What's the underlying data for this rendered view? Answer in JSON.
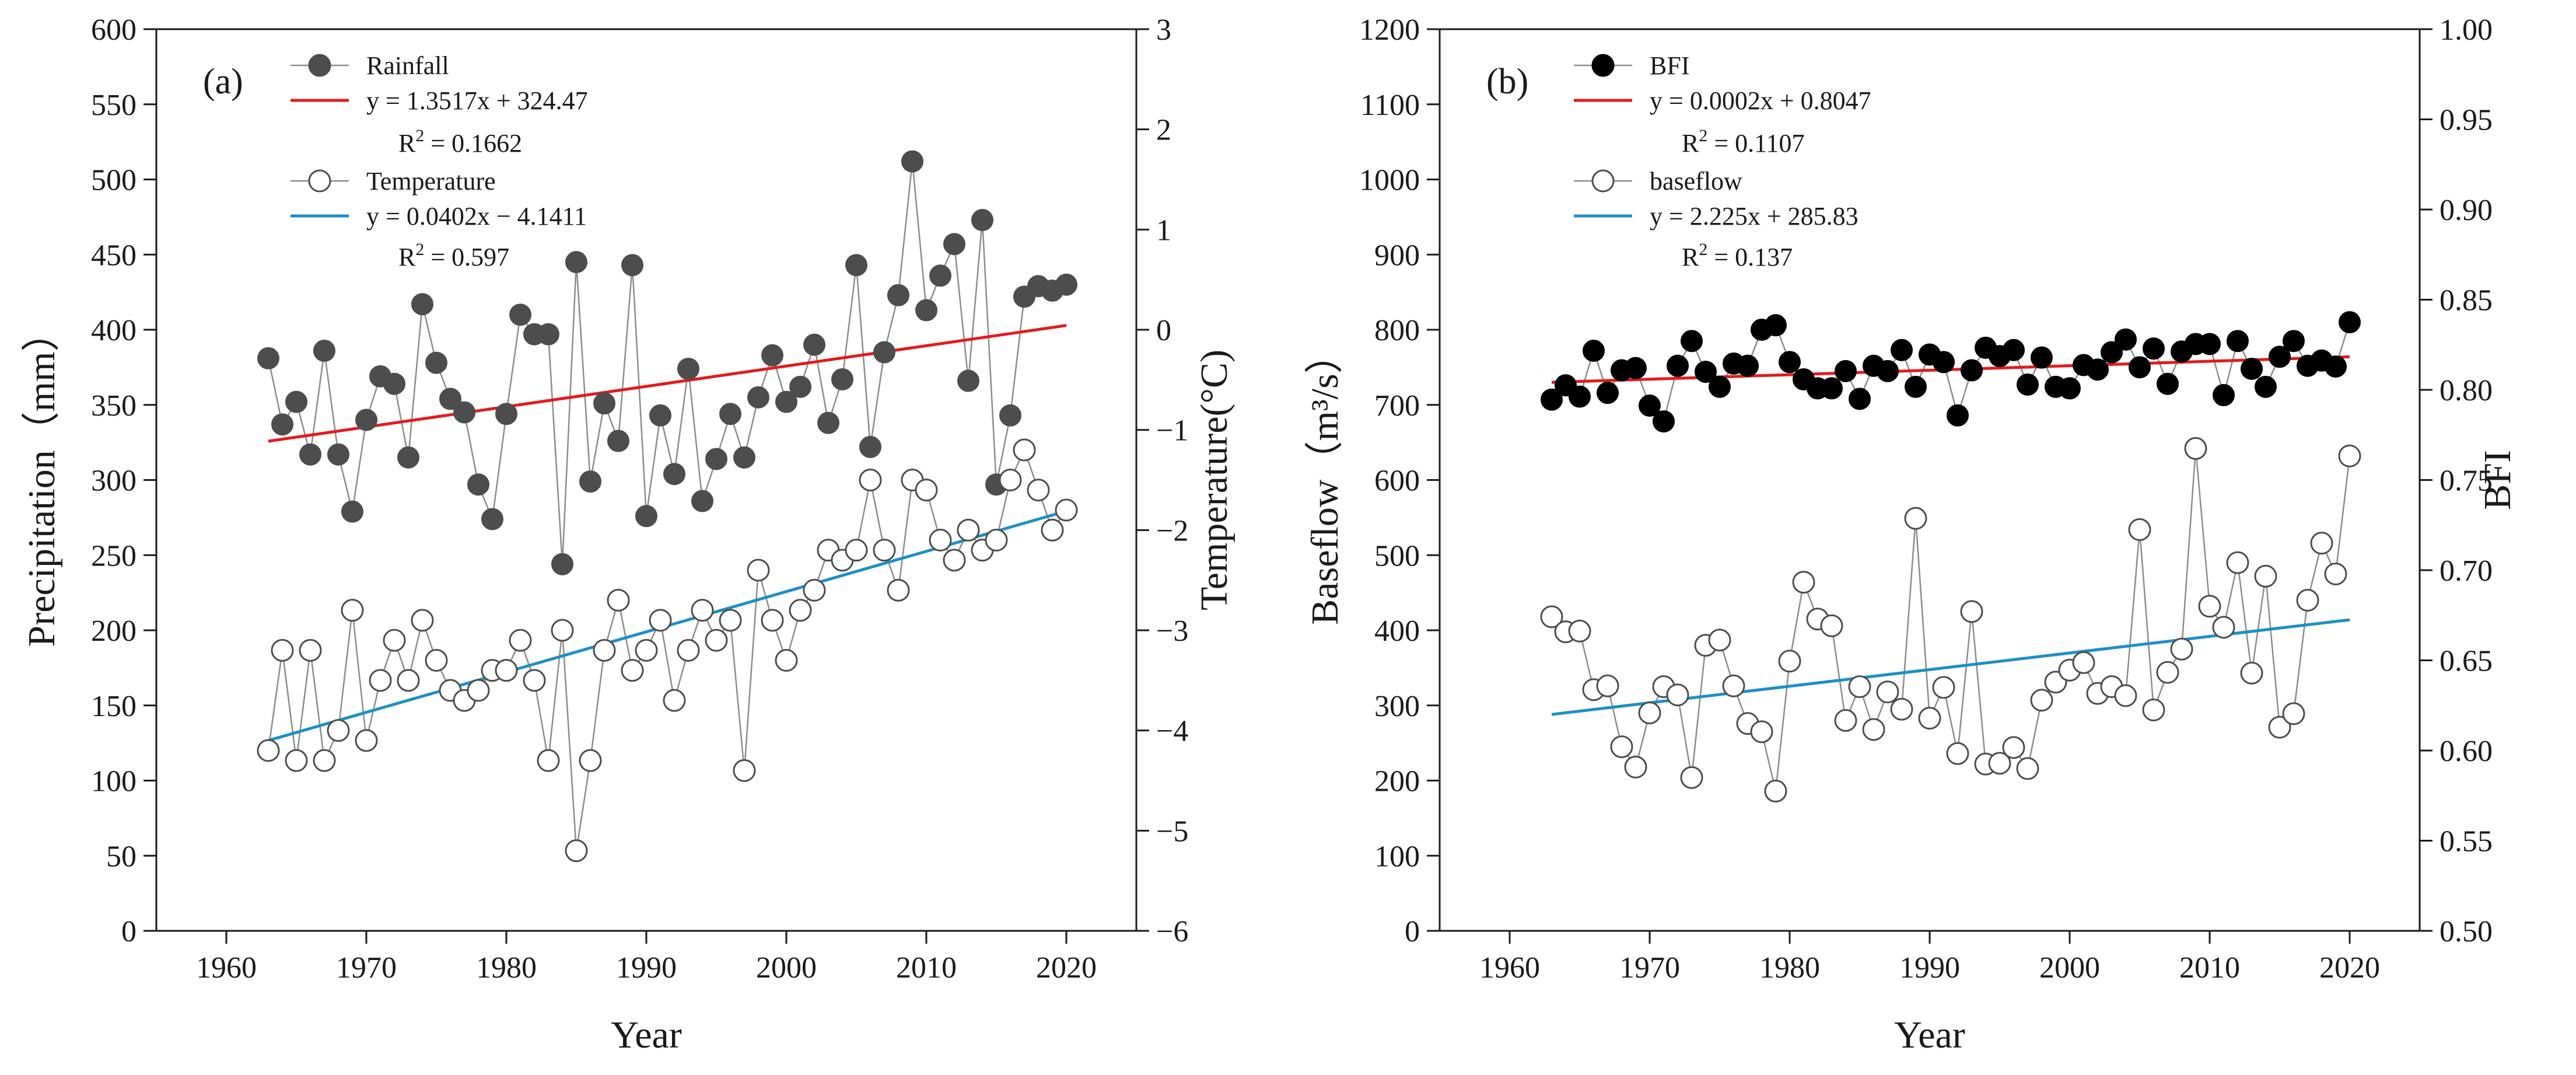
{
  "figure": "Two-panel chart: (a) precipitation and temperature; (b) baseflow and BFI",
  "chart_data": [
    {
      "type": "scatter",
      "panel_label": "(a)",
      "xlabel": "Year",
      "ylabel_left": "Precipitation（mm）",
      "ylabel_right": "Temperature(°C)",
      "xlim": [
        1955,
        2025
      ],
      "x_ticks": [
        1960,
        1970,
        1980,
        1990,
        2000,
        2010,
        2020
      ],
      "ylim_left": [
        0,
        600
      ],
      "y_ticks_left": [
        0,
        50,
        100,
        150,
        200,
        250,
        300,
        350,
        400,
        450,
        500,
        550,
        600
      ],
      "ylim_right": [
        -6,
        3
      ],
      "y_ticks_right": [
        -6,
        -5,
        -4,
        -3,
        -2,
        -1,
        0,
        1,
        2,
        3
      ],
      "series": [
        {
          "name": "Rainfall",
          "axis": "left",
          "marker": "filled",
          "color": "#4d4d4d",
          "x": [
            1963,
            1964,
            1965,
            1966,
            1967,
            1968,
            1969,
            1970,
            1971,
            1972,
            1973,
            1974,
            1975,
            1976,
            1977,
            1978,
            1979,
            1980,
            1981,
            1982,
            1983,
            1984,
            1985,
            1986,
            1987,
            1988,
            1989,
            1990,
            1991,
            1992,
            1993,
            1994,
            1995,
            1996,
            1997,
            1998,
            1999,
            2000,
            2001,
            2002,
            2003,
            2004,
            2005,
            2006,
            2007,
            2008,
            2009,
            2010,
            2011,
            2012,
            2013,
            2014,
            2015,
            2016,
            2017,
            2018,
            2019,
            2020
          ],
          "values": [
            381,
            337,
            352,
            317,
            386,
            317,
            279,
            340,
            369,
            364,
            315,
            417,
            378,
            354,
            345,
            297,
            274,
            344,
            410,
            397,
            397,
            244,
            445,
            299,
            351,
            326,
            443,
            276,
            343,
            304,
            374,
            286,
            314,
            344,
            315,
            355,
            383,
            352,
            362,
            390,
            338,
            367,
            443,
            322,
            385,
            423,
            512,
            413,
            436,
            457,
            366,
            473,
            297,
            343,
            422,
            429,
            426,
            430
          ]
        },
        {
          "name": "Temperature",
          "axis": "right",
          "marker": "open",
          "color": "#7f7f7f",
          "x": [
            1963,
            1964,
            1965,
            1966,
            1967,
            1968,
            1969,
            1970,
            1971,
            1972,
            1973,
            1974,
            1975,
            1976,
            1977,
            1978,
            1979,
            1980,
            1981,
            1982,
            1983,
            1984,
            1985,
            1986,
            1987,
            1988,
            1989,
            1990,
            1991,
            1992,
            1993,
            1994,
            1995,
            1996,
            1997,
            1998,
            1999,
            2000,
            2001,
            2002,
            2003,
            2004,
            2005,
            2006,
            2007,
            2008,
            2009,
            2010,
            2011,
            2012,
            2013,
            2014,
            2015,
            2016,
            2017,
            2018,
            2019,
            2020
          ],
          "values": [
            -4.2,
            -3.2,
            -4.3,
            -3.2,
            -4.3,
            -4.0,
            -2.8,
            -4.1,
            -3.5,
            -3.1,
            -3.5,
            -2.9,
            -3.3,
            -3.6,
            -3.7,
            -3.6,
            -3.4,
            -3.4,
            -3.1,
            -3.5,
            -4.3,
            -3.0,
            -5.2,
            -4.3,
            -3.2,
            -2.7,
            -3.4,
            -3.2,
            -2.9,
            -3.7,
            -3.2,
            -2.8,
            -3.1,
            -2.9,
            -4.4,
            -2.4,
            -2.9,
            -3.3,
            -2.8,
            -2.6,
            -2.2,
            -2.3,
            -2.2,
            -1.5,
            -2.2,
            -2.6,
            -1.5,
            -1.6,
            -2.1,
            -2.3,
            -2.0,
            -2.2,
            -2.1,
            -1.5,
            -1.2,
            -1.6,
            -2.0,
            -1.8
          ]
        }
      ],
      "fits": [
        {
          "name": "Rainfall fit",
          "axis": "left",
          "color": "#e41a1c",
          "equation": "y = 1.3517x + 324.47",
          "r2": "0.1662",
          "x": [
            1963,
            2020
          ],
          "values": [
            325.82,
            402.87
          ]
        },
        {
          "name": "Temperature fit",
          "axis": "right",
          "color": "#1b8fc9",
          "equation": "y = 0.0402x − 4.1411",
          "r2": "0.597",
          "x": [
            1963,
            2020
          ],
          "values": [
            -4.1,
            -1.81
          ]
        }
      ],
      "legend": {
        "location": "top-left",
        "entries": [
          {
            "label": "Rainfall",
            "type": "marker-filled"
          },
          {
            "label": "y = 1.3517x + 324.47",
            "type": "line",
            "color": "#e41a1c"
          },
          {
            "label": "R",
            "sup": "2",
            "suffix": " = 0.1662",
            "type": "text"
          },
          {
            "label": "Temperature",
            "type": "marker-open"
          },
          {
            "label": "y = 0.0402x − 4.1411",
            "type": "line",
            "color": "#1b8fc9"
          },
          {
            "label": "R",
            "sup": "2",
            "suffix": " = 0.597",
            "type": "text"
          }
        ]
      }
    },
    {
      "type": "scatter",
      "panel_label": "(b)",
      "xlabel": "Year",
      "ylabel_left": "Baseflow（m³/s）",
      "ylabel_right": "BFI",
      "xlim": [
        1955,
        2025
      ],
      "x_ticks": [
        1960,
        1970,
        1980,
        1990,
        2000,
        2010,
        2020
      ],
      "ylim_left": [
        0,
        1200
      ],
      "y_ticks_left": [
        0,
        100,
        200,
        300,
        400,
        500,
        600,
        700,
        800,
        900,
        1000,
        1100,
        1200
      ],
      "ylim_right": [
        0.5,
        1.0
      ],
      "y_ticks_right": [
        "0.50",
        "0.55",
        "0.60",
        "0.65",
        "0.70",
        "0.75",
        "0.80",
        "0.85",
        "0.90",
        "0.95",
        "1.00"
      ],
      "series": [
        {
          "name": "BFI",
          "axis": "left",
          "marker": "filled",
          "color": "#000000",
          "x": [
            1963,
            1964,
            1965,
            1966,
            1967,
            1968,
            1969,
            1970,
            1971,
            1972,
            1973,
            1974,
            1975,
            1976,
            1977,
            1978,
            1979,
            1980,
            1981,
            1982,
            1983,
            1984,
            1985,
            1986,
            1987,
            1988,
            1989,
            1990,
            1991,
            1992,
            1993,
            1994,
            1995,
            1996,
            1997,
            1998,
            1999,
            2000,
            2001,
            2002,
            2003,
            2004,
            2005,
            2006,
            2007,
            2008,
            2009,
            2010,
            2011,
            2012,
            2013,
            2014,
            2015,
            2016,
            2017,
            2018,
            2019,
            2020
          ],
          "values": [
            707,
            726,
            711,
            772,
            716,
            746,
            749,
            699,
            678,
            752,
            785,
            744,
            724,
            755,
            752,
            800,
            806,
            757,
            734,
            722,
            722,
            745,
            708,
            752,
            745,
            773,
            724,
            767,
            757,
            686,
            746,
            776,
            765,
            773,
            727,
            763,
            724,
            722,
            753,
            747,
            770,
            787,
            750,
            775,
            728,
            771,
            781,
            781,
            713,
            785,
            748,
            724,
            764,
            785,
            752,
            759,
            751,
            810
          ]
        },
        {
          "name": "baseflow",
          "axis": "left",
          "marker": "open",
          "color": "#7f7f7f",
          "x": [
            1963,
            1964,
            1965,
            1966,
            1967,
            1968,
            1969,
            1970,
            1971,
            1972,
            1973,
            1974,
            1975,
            1976,
            1977,
            1978,
            1979,
            1980,
            1981,
            1982,
            1983,
            1984,
            1985,
            1986,
            1987,
            1988,
            1989,
            1990,
            1991,
            1992,
            1993,
            1994,
            1995,
            1996,
            1997,
            1998,
            1999,
            2000,
            2001,
            2002,
            2003,
            2004,
            2005,
            2006,
            2007,
            2008,
            2009,
            2010,
            2011,
            2012,
            2013,
            2014,
            2015,
            2016,
            2017,
            2018,
            2019,
            2020
          ],
          "values": [
            418,
            398,
            399,
            321,
            326,
            245,
            218,
            290,
            325,
            314,
            204,
            380,
            387,
            326,
            276,
            265,
            186,
            359,
            464,
            415,
            406,
            280,
            325,
            268,
            318,
            295,
            549,
            283,
            324,
            236,
            425,
            222,
            223,
            244,
            216,
            307,
            331,
            347,
            357,
            316,
            325,
            313,
            534,
            294,
            344,
            375,
            642,
            432,
            404,
            490,
            343,
            472,
            271,
            289,
            440,
            516,
            475,
            632
          ]
        }
      ],
      "fits": [
        {
          "name": "BFI fit",
          "axis": "left",
          "color": "#e41a1c",
          "equation": "y = 0.0002x + 0.8047",
          "r2": "0.1107",
          "x": [
            1963,
            2020
          ],
          "values": [
            730,
            764
          ]
        },
        {
          "name": "baseflow fit",
          "axis": "left",
          "color": "#1b8fc9",
          "equation": "y = 2.225x + 285.83",
          "r2": "0.137",
          "x": [
            1963,
            2020
          ],
          "values": [
            288,
            414
          ]
        }
      ],
      "legend": {
        "location": "top-left",
        "entries": [
          {
            "label": "BFI",
            "type": "marker-filled"
          },
          {
            "label": "y = 0.0002x + 0.8047",
            "type": "line",
            "color": "#e41a1c"
          },
          {
            "label": "R",
            "sup": "2",
            "suffix": " = 0.1107",
            "type": "text"
          },
          {
            "label": "baseflow",
            "type": "marker-open"
          },
          {
            "label": "y = 2.225x + 285.83",
            "type": "line",
            "color": "#1b8fc9"
          },
          {
            "label": "R",
            "sup": "2",
            "suffix": " = 0.137",
            "type": "text"
          }
        ]
      }
    }
  ]
}
